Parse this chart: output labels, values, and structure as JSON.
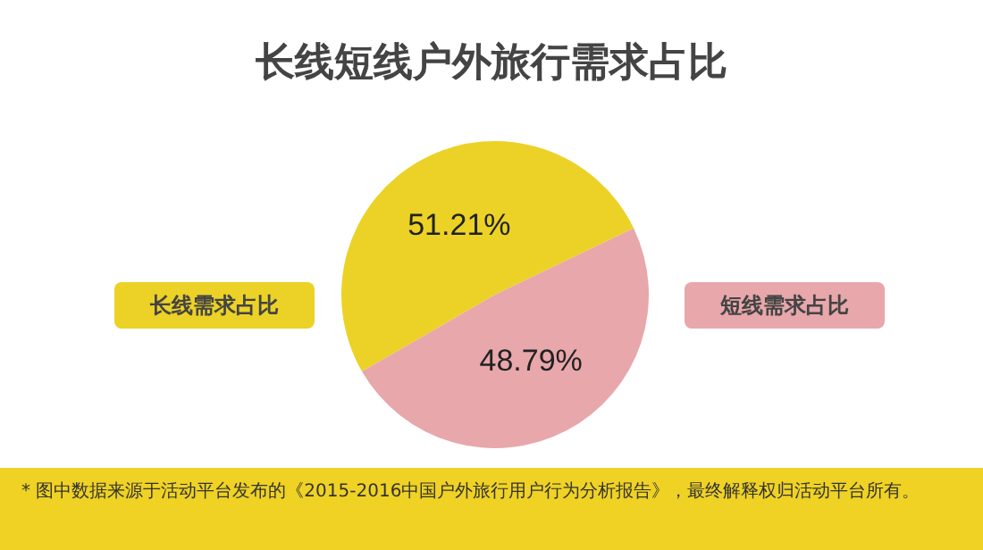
{
  "chart_data": {
    "type": "pie",
    "title": "长线短线户外旅行需求占比",
    "categories": [
      "长线需求占比",
      "短线需求占比"
    ],
    "values": [
      51.21,
      48.79
    ],
    "colors": [
      "#ecd226",
      "#e8a7ab"
    ],
    "value_labels": [
      "51.21%",
      "48.79%"
    ],
    "annotations": [
      "* 图中数据来源于活动平台发布的《2015-2016中国户外旅行用户行为分析报告》，最终解释权归活动平台所有。"
    ]
  }
}
